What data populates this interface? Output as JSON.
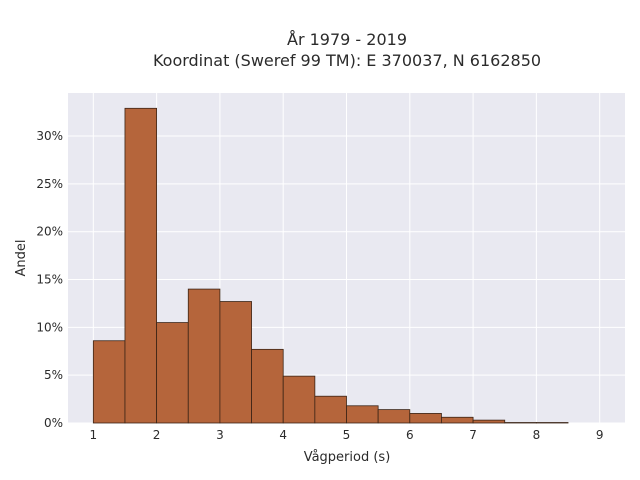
{
  "chart_data": {
    "type": "bar",
    "title_line1": "År 1979 - 2019",
    "title_line2": "Koordinat (Sweref 99 TM): E 370037, N 6162850",
    "xlabel": "Vågperiod (s)",
    "ylabel": "Andel",
    "bin_edges": [
      1,
      1.5,
      2,
      2.5,
      3,
      3.5,
      4,
      4.5,
      5,
      5.5,
      6,
      6.5,
      7,
      7.5,
      8,
      8.5,
      9
    ],
    "values": [
      8.6,
      32.9,
      10.5,
      14.0,
      12.7,
      7.7,
      4.9,
      2.8,
      1.8,
      1.4,
      1.0,
      0.6,
      0.3,
      0.05,
      0.05,
      0.0
    ],
    "xlim": [
      0.6,
      9.4
    ],
    "ylim": [
      0,
      34.5
    ],
    "x_ticks": [
      1,
      2,
      3,
      4,
      5,
      6,
      7,
      8,
      9
    ],
    "x_tick_labels": [
      "1",
      "2",
      "3",
      "4",
      "5",
      "6",
      "7",
      "8",
      "9"
    ],
    "y_ticks": [
      0,
      5,
      10,
      15,
      20,
      25,
      30
    ],
    "y_tick_labels": [
      "0%",
      "5%",
      "10%",
      "15%",
      "20%",
      "25%",
      "30%"
    ],
    "grid": true,
    "colors": {
      "bar_fill": "#b5653b",
      "bar_edge": "#3b2416",
      "plot_bg": "#e9e9f1",
      "grid": "#ffffff"
    }
  }
}
